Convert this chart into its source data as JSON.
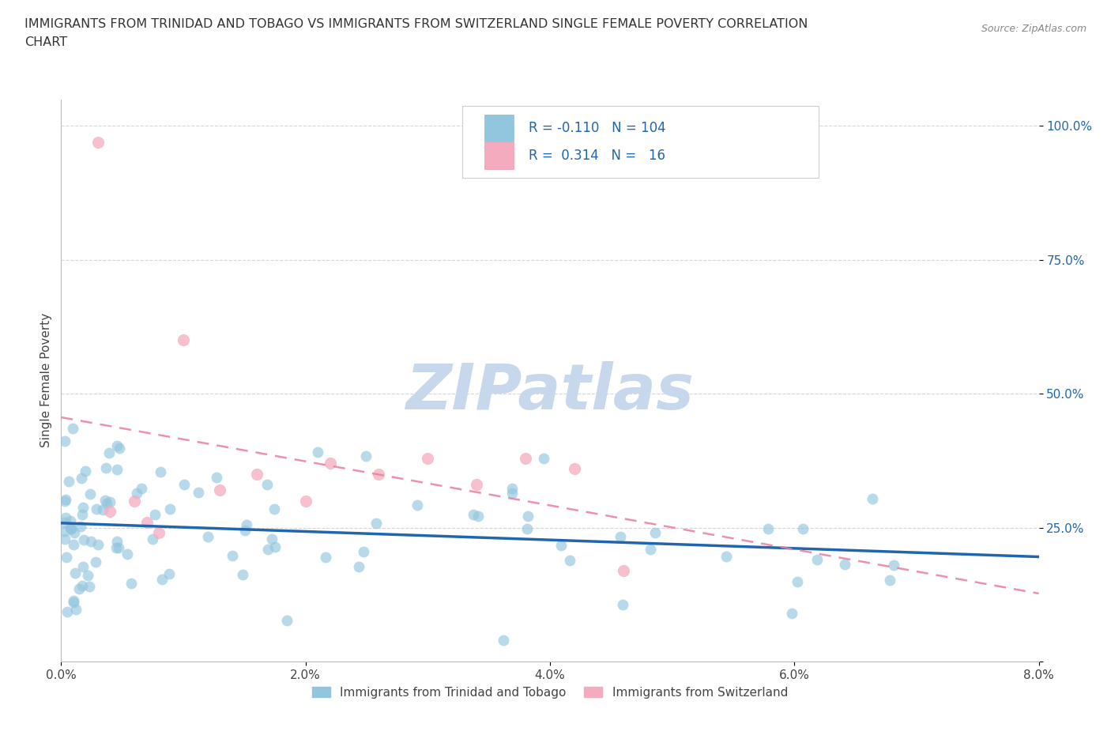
{
  "title_line1": "IMMIGRANTS FROM TRINIDAD AND TOBAGO VS IMMIGRANTS FROM SWITZERLAND SINGLE FEMALE POVERTY CORRELATION",
  "title_line2": "CHART",
  "source": "Source: ZipAtlas.com",
  "ylabel_label": "Single Female Poverty",
  "x_min": 0.0,
  "x_max": 0.08,
  "y_min": 0.0,
  "y_max": 1.05,
  "legend_labels": [
    "Immigrants from Trinidad and Tobago",
    "Immigrants from Switzerland"
  ],
  "series1_color": "#92C5DE",
  "series2_color": "#F4ABBE",
  "series1_line_color": "#2166AC",
  "series2_line_color": "#E87EA1",
  "R1": -0.11,
  "N1": 104,
  "R2": 0.314,
  "N2": 16,
  "watermark": "ZIPatlas",
  "watermark_color": "#C8D8EC",
  "background_color": "#ffffff"
}
